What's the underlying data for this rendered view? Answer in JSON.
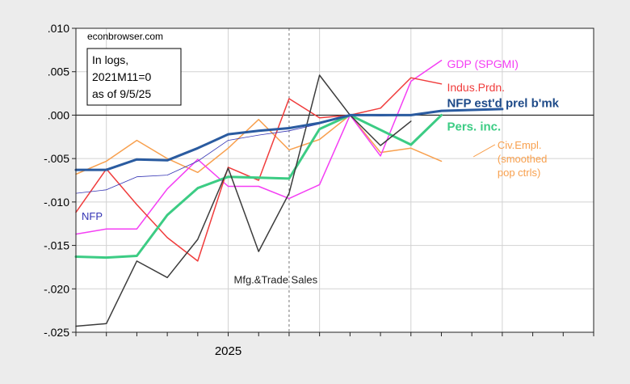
{
  "chart_data": {
    "type": "line",
    "source": "econbrowser.com",
    "info_box": [
      "In logs,",
      "2021M11=0",
      "as of 9/5/25"
    ],
    "x_tick_label": "2025",
    "ylim": [
      -0.025,
      0.01
    ],
    "y_ticks": [
      {
        "v": 0.01,
        "label": ".010"
      },
      {
        "v": 0.005,
        "label": ".005"
      },
      {
        "v": 0.0,
        "label": ".000"
      },
      {
        "v": -0.005,
        "label": "-.005"
      },
      {
        "v": -0.01,
        "label": "-.010"
      },
      {
        "v": -0.015,
        "label": "-.015"
      },
      {
        "v": -0.02,
        "label": "-.020"
      },
      {
        "v": -0.025,
        "label": "-.025"
      }
    ],
    "x_periods": [
      "2024M08",
      "2024M09",
      "2024M10",
      "2024M11",
      "2024M12",
      "2025M01",
      "2025M02",
      "2025M03",
      "2025M04",
      "2025M05",
      "2025M06",
      "2025M07",
      "2025M08",
      "2025M09",
      "2025M10",
      "2025M11",
      "2025M12",
      "2026M01"
    ],
    "reference_period": "2025M03",
    "x_grid": [
      "2024M09",
      "2025M01",
      "2025M04",
      "2025M07",
      "2025M10",
      "2026M01"
    ],
    "series": [
      {
        "name": "Civ.Empl.",
        "label_lines": [
          "Civ.Empl.",
          "(smoothed",
          "pop ctrls)"
        ],
        "color": "#f8a04e",
        "width": 1.5,
        "x": [
          "2024M08",
          "2024M09",
          "2024M10",
          "2024M11",
          "2024M12",
          "2025M01",
          "2025M02",
          "2025M03",
          "2025M04",
          "2025M05",
          "2025M06",
          "2025M07",
          "2025M08"
        ],
        "values": [
          -0.0068,
          -0.0053,
          -0.0029,
          -0.005,
          -0.0066,
          -0.0038,
          -0.0005,
          -0.004,
          -0.0028,
          0.0,
          -0.0043,
          -0.0038,
          -0.0053
        ]
      },
      {
        "name": "GDP (SPGMI)",
        "color": "#f43ef4",
        "width": 1.5,
        "x": [
          "2024M08",
          "2024M09",
          "2024M10",
          "2024M11",
          "2024M12",
          "2025M01",
          "2025M02",
          "2025M03",
          "2025M04",
          "2025M05",
          "2025M06",
          "2025M07",
          "2025M08"
        ],
        "values": [
          -0.0137,
          -0.0131,
          -0.0131,
          -0.0085,
          -0.0051,
          -0.0082,
          -0.0082,
          -0.0096,
          -0.008,
          0.0,
          -0.0047,
          0.0039,
          0.0063
        ]
      },
      {
        "name": "Indus.Prdn.",
        "color": "#f03c3c",
        "width": 1.5,
        "x": [
          "2024M08",
          "2024M09",
          "2024M10",
          "2024M11",
          "2024M12",
          "2025M01",
          "2025M02",
          "2025M03",
          "2025M04",
          "2025M05",
          "2025M06",
          "2025M07",
          "2025M08"
        ],
        "values": [
          -0.0112,
          -0.0062,
          -0.0103,
          -0.0141,
          -0.0168,
          -0.006,
          -0.0075,
          0.0019,
          -0.0003,
          0.0,
          0.0008,
          0.0043,
          0.0036
        ]
      },
      {
        "name": "NFP",
        "color": "#3434b4",
        "width": 0.8,
        "x": [
          "2024M08",
          "2024M09",
          "2024M10",
          "2024M11",
          "2024M12",
          "2025M01",
          "2025M02",
          "2025M03",
          "2025M04",
          "2025M05",
          "2025M06",
          "2025M07",
          "2025M08",
          "2025M09",
          "2025M10"
        ],
        "values": [
          -0.009,
          -0.0086,
          -0.0071,
          -0.0069,
          -0.0053,
          -0.0029,
          -0.0023,
          -0.0018,
          -0.001,
          0.0,
          -0.0001,
          0.0,
          0.0004,
          0.0006,
          0.0007
        ]
      },
      {
        "name": "Pers. inc.",
        "color": "#3ccc84",
        "width": 3,
        "x": [
          "2024M08",
          "2024M09",
          "2024M10",
          "2024M11",
          "2024M12",
          "2025M01",
          "2025M02",
          "2025M03",
          "2025M04",
          "2025M05",
          "2025M06",
          "2025M07",
          "2025M08"
        ],
        "values": [
          -0.0163,
          -0.0164,
          -0.0162,
          -0.0115,
          -0.0084,
          -0.0071,
          -0.0072,
          -0.0073,
          -0.0016,
          0.0,
          -0.0017,
          -0.0034,
          0.0
        ]
      },
      {
        "name": "Mfg.&Trade Sales",
        "color": "#3c3c3c",
        "width": 1.5,
        "x": [
          "2024M08",
          "2024M09",
          "2024M10",
          "2024M11",
          "2024M12",
          "2025M01",
          "2025M02",
          "2025M03",
          "2025M04",
          "2025M05",
          "2025M06",
          "2025M07"
        ],
        "values": [
          -0.0243,
          -0.024,
          -0.0168,
          -0.0187,
          -0.0143,
          -0.0061,
          -0.0157,
          -0.009,
          0.0046,
          0.0,
          -0.0035,
          -0.0007
        ]
      },
      {
        "name": "NFP est'd prel b'mk",
        "color": "#2a5ba0",
        "width": 3,
        "x": [
          "2024M08",
          "2024M09",
          "2024M10",
          "2024M11",
          "2024M12",
          "2025M01",
          "2025M02",
          "2025M03",
          "2025M04",
          "2025M05",
          "2025M06",
          "2025M07",
          "2025M08",
          "2025M09",
          "2025M10"
        ],
        "values": [
          -0.0063,
          -0.0063,
          -0.0051,
          -0.0052,
          -0.0038,
          -0.0022,
          -0.0018,
          -0.0015,
          -0.0009,
          0.0,
          0.0,
          0.0,
          0.0005,
          0.0006,
          0.0007
        ]
      }
    ],
    "labels": [
      {
        "series": "GDP (SPGMI)",
        "text": "GDP (SPGMI)",
        "color": "#f43ef4",
        "size": 14,
        "bold": false,
        "anchor": [
          "2025M08",
          0.0059
        ]
      },
      {
        "series": "Indus.Prdn.",
        "text": "Indus.Prdn.",
        "color": "#f03c3c",
        "size": 14,
        "bold": false,
        "anchor": [
          "2025M08",
          0.0032
        ]
      },
      {
        "series": "NFP est'd prel b'mk",
        "text": "NFP est'd prel b'mk",
        "color": "#1e4a88",
        "size": 15,
        "bold": true,
        "anchor": [
          "2025M08",
          0.0014
        ]
      },
      {
        "series": "Pers. inc.",
        "text": "Pers. inc.",
        "color": "#3ccc84",
        "size": 15,
        "bold": true,
        "anchor": [
          "2025M08",
          -0.0013
        ]
      },
      {
        "series": "NFP",
        "text": "NFP",
        "color": "#3434b4",
        "size": 13,
        "bold": false,
        "anchor": [
          "2024M08",
          -0.0116
        ]
      },
      {
        "series": "Mfg.&Trade Sales",
        "text": "Mfg.&Trade Sales",
        "color": "#222222",
        "size": 13,
        "bold": false,
        "anchor": [
          "2025M01",
          -0.0189
        ]
      }
    ],
    "grid": true
  }
}
